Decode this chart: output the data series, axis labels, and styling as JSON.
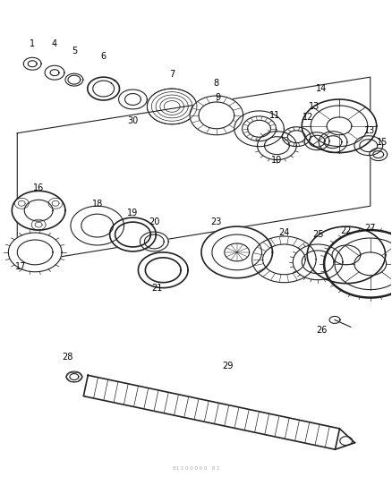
{
  "bg_color": "#ffffff",
  "line_color": "#222222",
  "label_color": "#000000",
  "footer_text": "81 1 0 0 0 0 0   8 1",
  "fig_w": 4.38,
  "fig_h": 5.33,
  "dpi": 100
}
